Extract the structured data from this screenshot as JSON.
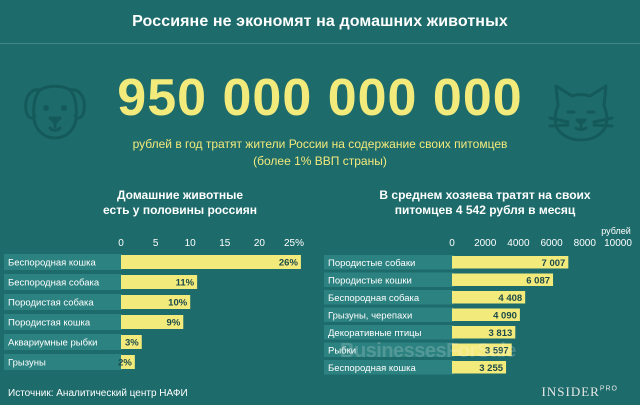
{
  "header": {
    "title": "Россияне не экономят на домашних животных"
  },
  "headline": {
    "big_number": "950 000 000 000",
    "caption_line1": "рублей в год тратят жители России на содержание своих питомцев",
    "caption_line2": "(более 1% ВВП страны)"
  },
  "icons": {
    "left": "dog-icon",
    "right": "cat-icon"
  },
  "footer": {
    "source": "Источник: Аналитический центр НАФИ",
    "publisher": "INSIDER",
    "publisher_sup": "PRO",
    "watermark": "BusinessesForSale"
  },
  "colors": {
    "background": "#1e6b6b",
    "label_band": "#2c8280",
    "bar": "#f3ea7c",
    "bar_value_text": "#1b4a4a",
    "accent_text": "#f3ea7c"
  },
  "chart_data": [
    {
      "type": "bar",
      "orientation": "horizontal",
      "title_line1": "Домашние животные",
      "title_line2": "есть у половины россиян",
      "categories": [
        "Беспородная кошка",
        "Беспородная собака",
        "Породистая собака",
        "Породистая кошка",
        "Аквариумные рыбки",
        "Грызуны"
      ],
      "values": [
        26,
        11,
        10,
        9,
        3,
        2
      ],
      "value_labels": [
        "26%",
        "11%",
        "10%",
        "9%",
        "3%",
        "2%"
      ],
      "ticks": [
        "0",
        "5",
        "10",
        "15",
        "20",
        "25%"
      ],
      "tick_values": [
        0,
        5,
        10,
        15,
        20,
        25
      ],
      "xlim": [
        0,
        25
      ],
      "axis_label": ""
    },
    {
      "type": "bar",
      "orientation": "horizontal",
      "title_line1": "В среднем хозяева тратят на своих",
      "title_line2": "питомцев 4 542 рубля в месяц",
      "categories": [
        "Породистые собаки",
        "Породистые кошки",
        "Беспородная собака",
        "Грызуны, черепахи",
        "Декоративные птицы",
        "Рыбки",
        "Беспородная кошка"
      ],
      "values": [
        7007,
        6087,
        4408,
        4090,
        3813,
        3597,
        3255
      ],
      "value_labels": [
        "7 007",
        "6 087",
        "4 408",
        "4 090",
        "3 813",
        "3 597",
        "3 255"
      ],
      "ticks": [
        "0",
        "2000",
        "4000",
        "6000",
        "8000",
        "10000"
      ],
      "tick_values": [
        0,
        2000,
        4000,
        6000,
        8000,
        10000
      ],
      "xlim": [
        0,
        10000
      ],
      "axis_label": "рублей"
    }
  ]
}
